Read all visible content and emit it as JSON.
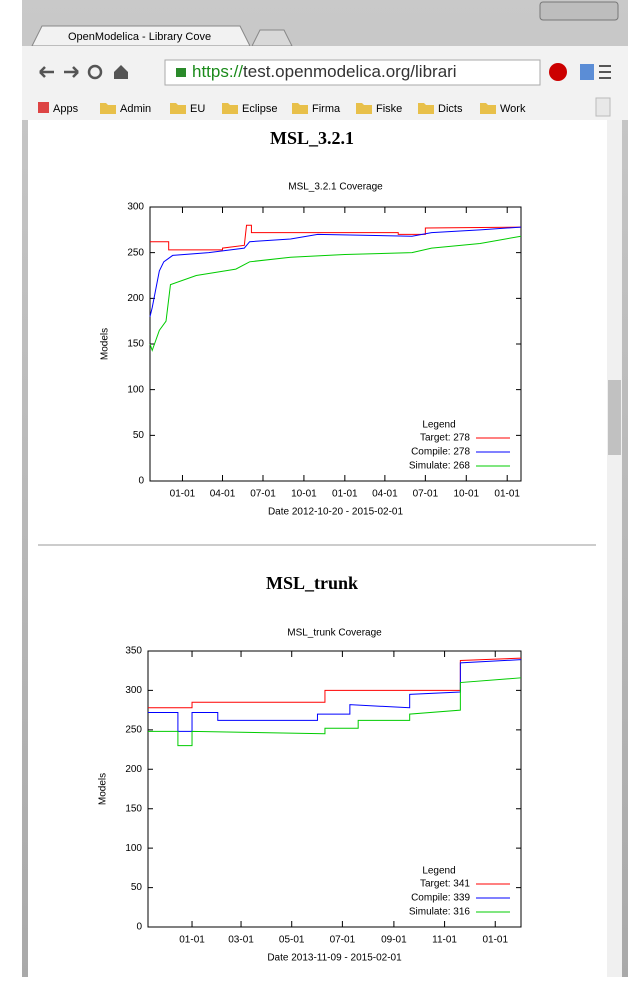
{
  "browser": {
    "tab_title": "OpenModelica - Library Cove",
    "url_scheme": "https://",
    "url_rest": "test.openmodelica.org/librari",
    "bookmarks": [
      "Apps",
      "Admin",
      "EU",
      "Eclipse",
      "Firma",
      "Fiske",
      "Dicts",
      "Work"
    ]
  },
  "sections": [
    {
      "heading": "MSL_3.2.1",
      "chart_data": {
        "type": "line",
        "title": "MSL_3.2.1 Coverage",
        "y_label": "Models",
        "x_label": "Date 2012-10-20 - 2015-02-01",
        "legend_title": "Legend",
        "xlim": [
          "2012-10-20",
          "2015-02-01"
        ],
        "ylim": [
          0,
          300
        ],
        "yticks": [
          0,
          50,
          100,
          150,
          200,
          250,
          300
        ],
        "xticks": [
          {
            "value": "2013-01-01",
            "label": "01-01"
          },
          {
            "value": "2013-04-01",
            "label": "04-01"
          },
          {
            "value": "2013-07-01",
            "label": "07-01"
          },
          {
            "value": "2013-10-01",
            "label": "10-01"
          },
          {
            "value": "2014-01-01",
            "label": "01-01"
          },
          {
            "value": "2014-04-01",
            "label": "04-01"
          },
          {
            "value": "2014-07-01",
            "label": "07-01"
          },
          {
            "value": "2014-10-01",
            "label": "10-01"
          },
          {
            "value": "2015-01-01",
            "label": "01-01"
          }
        ],
        "series": [
          {
            "name": "Target: 278",
            "color": "#ff0000",
            "x": [
              "2012-10-20",
              "2012-12-01",
              "2012-12-01",
              "2013-04-01",
              "2013-04-01",
              "2013-05-20",
              "2013-05-25",
              "2013-06-05",
              "2013-06-05",
              "2014-05-01",
              "2014-05-01",
              "2014-07-01",
              "2014-07-01",
              "2015-02-01"
            ],
            "values": [
              262,
              262,
              253,
              253,
              255,
              258,
              280,
              280,
              272,
              272,
              270,
              270,
              277,
              278
            ]
          },
          {
            "name": "Compile: 278",
            "color": "#0000ff",
            "x": [
              "2012-10-20",
              "2012-10-25",
              "2012-11-10",
              "2012-11-20",
              "2012-12-10",
              "2013-03-01",
              "2013-05-20",
              "2013-06-01",
              "2013-09-01",
              "2013-11-01",
              "2014-06-01",
              "2014-07-15",
              "2014-11-01",
              "2015-02-01"
            ],
            "values": [
              180,
              190,
              230,
              240,
              247,
              250,
              255,
              262,
              265,
              270,
              268,
              272,
              275,
              278
            ]
          },
          {
            "name": "Simulate: 268",
            "color": "#00cc00",
            "x": [
              "2012-10-20",
              "2012-10-25",
              "2012-11-10",
              "2012-11-25",
              "2012-12-05",
              "2013-02-01",
              "2013-05-01",
              "2013-06-01",
              "2013-09-01",
              "2014-01-01",
              "2014-06-01",
              "2014-07-15",
              "2014-11-01",
              "2015-02-01"
            ],
            "values": [
              150,
              143,
              165,
              175,
              215,
              225,
              232,
              240,
              245,
              248,
              250,
              255,
              260,
              268
            ]
          }
        ]
      }
    },
    {
      "heading": "MSL_trunk",
      "chart_data": {
        "type": "line",
        "title": "MSL_trunk Coverage",
        "y_label": "Models",
        "x_label": "Date 2013-11-09 - 2015-02-01",
        "legend_title": "Legend",
        "xlim": [
          "2013-11-09",
          "2015-02-01"
        ],
        "ylim": [
          0,
          350
        ],
        "yticks": [
          0,
          50,
          100,
          150,
          200,
          250,
          300,
          350
        ],
        "xticks": [
          {
            "value": "2014-01-01",
            "label": "01-01"
          },
          {
            "value": "2014-03-01",
            "label": "03-01"
          },
          {
            "value": "2014-05-01",
            "label": "05-01"
          },
          {
            "value": "2014-07-01",
            "label": "07-01"
          },
          {
            "value": "2014-09-01",
            "label": "09-01"
          },
          {
            "value": "2014-11-01",
            "label": "11-01"
          },
          {
            "value": "2015-01-01",
            "label": "01-01"
          }
        ],
        "series": [
          {
            "name": "Target: 341",
            "color": "#ff0000",
            "x": [
              "2013-11-09",
              "2014-01-01",
              "2014-01-01",
              "2014-06-10",
              "2014-06-10",
              "2014-11-20",
              "2014-11-20",
              "2015-02-01"
            ],
            "values": [
              278,
              278,
              285,
              285,
              300,
              300,
              338,
              341
            ]
          },
          {
            "name": "Compile: 339",
            "color": "#0000ff",
            "x": [
              "2013-11-09",
              "2013-12-15",
              "2013-12-15",
              "2014-01-01",
              "2014-01-01",
              "2014-02-01",
              "2014-02-01",
              "2014-06-01",
              "2014-06-01",
              "2014-07-10",
              "2014-07-10",
              "2014-09-20",
              "2014-09-20",
              "2014-11-20",
              "2014-11-20",
              "2015-02-01"
            ],
            "values": [
              272,
              272,
              248,
              248,
              272,
              272,
              262,
              262,
              270,
              270,
              282,
              278,
              295,
              298,
              335,
              339
            ]
          },
          {
            "name": "Simulate: 316",
            "color": "#00cc00",
            "x": [
              "2013-11-09",
              "2013-12-15",
              "2013-12-15",
              "2014-01-01",
              "2014-01-01",
              "2014-06-10",
              "2014-06-10",
              "2014-07-20",
              "2014-07-20",
              "2014-09-20",
              "2014-09-20",
              "2014-11-20",
              "2014-11-20",
              "2015-02-01"
            ],
            "values": [
              248,
              248,
              230,
              230,
              248,
              245,
              252,
              252,
              262,
              262,
              270,
              275,
              310,
              316
            ]
          }
        ]
      }
    }
  ]
}
